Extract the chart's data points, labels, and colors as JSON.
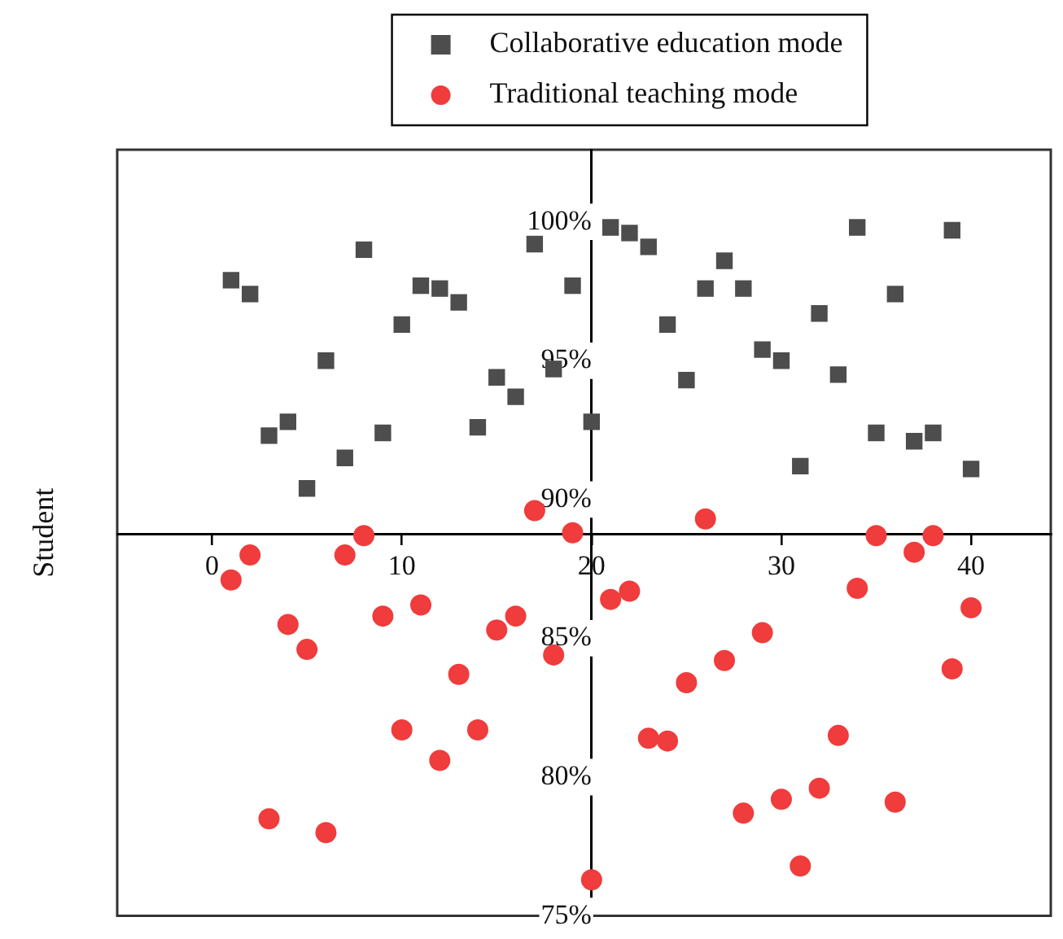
{
  "chart_data": {
    "type": "scatter",
    "ylabel": "Student",
    "x": [
      1,
      2,
      3,
      4,
      5,
      6,
      7,
      8,
      9,
      10,
      11,
      12,
      13,
      14,
      15,
      16,
      17,
      18,
      19,
      20,
      21,
      22,
      23,
      24,
      25,
      26,
      27,
      28,
      29,
      30,
      31,
      32,
      33,
      34,
      35,
      36,
      37,
      38,
      39,
      40
    ],
    "series": [
      {
        "name": "Collaborative education mode",
        "color": "#4d4d4d",
        "marker": "square",
        "values": [
          97.9,
          97.4,
          92.3,
          92.8,
          90.4,
          95.0,
          91.5,
          99.0,
          92.4,
          96.3,
          97.7,
          97.6,
          97.1,
          92.6,
          94.4,
          93.7,
          99.2,
          94.7,
          97.7,
          92.8,
          99.8,
          99.6,
          99.1,
          96.3,
          94.3,
          97.6,
          98.6,
          97.6,
          95.4,
          95.0,
          91.2,
          96.7,
          94.5,
          99.8,
          92.4,
          97.4,
          92.1,
          92.4,
          99.7,
          91.1
        ]
      },
      {
        "name": "Traditional teaching mode",
        "color": "#f03c3c",
        "marker": "circle",
        "values": [
          87.1,
          88.0,
          78.5,
          85.5,
          84.6,
          78.0,
          88.0,
          88.7,
          85.8,
          81.7,
          86.2,
          80.6,
          83.7,
          81.7,
          85.3,
          85.8,
          89.6,
          84.4,
          88.8,
          76.3,
          86.4,
          86.7,
          81.4,
          81.3,
          83.4,
          89.3,
          84.2,
          78.7,
          85.2,
          79.2,
          76.8,
          79.6,
          81.5,
          86.8,
          88.7,
          79.1,
          88.1,
          88.7,
          83.9,
          86.1
        ]
      }
    ],
    "xlim": [
      -5,
      44.2
    ],
    "ylim": [
      75,
      102.6
    ],
    "xticks": [
      0,
      10,
      20,
      30,
      40
    ],
    "yticks": [
      {
        "value": 75,
        "label": "75%"
      },
      {
        "value": 80,
        "label": "80%"
      },
      {
        "value": 85,
        "label": "85%"
      },
      {
        "value": 90,
        "label": "90%"
      },
      {
        "value": 95,
        "label": "95%"
      },
      {
        "value": 100,
        "label": "100%"
      }
    ],
    "grid": false,
    "legend": "top"
  }
}
